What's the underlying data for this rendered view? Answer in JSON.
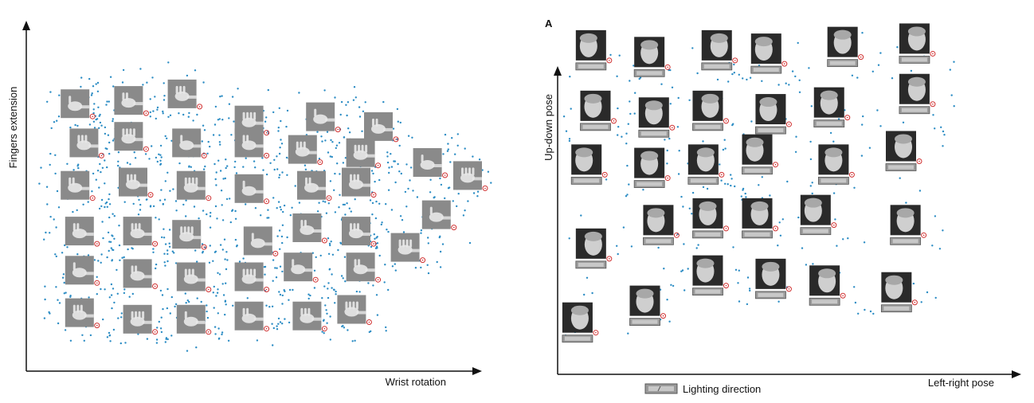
{
  "colors": {
    "point": "#2b8cc4",
    "axis": "#111111",
    "marker": "#d03030",
    "hand_bg": "#8a8a8a",
    "hand_fg": "#e8e8e8",
    "face_bg": "#2a2a2a",
    "face_fg": "#cfcfcf",
    "light_bar": "#9a9a9a"
  },
  "chart_data": [
    {
      "type": "scatter",
      "name": "hand-images-embedding",
      "xlabel": "Wrist rotation",
      "ylabel": "Fingers extension",
      "grid": false,
      "x_range": [
        0,
        10
      ],
      "y_range": [
        0,
        10
      ],
      "thumbnail_icon": "hand-image-icon",
      "thumbnails": [
        {
          "x": 0.7,
          "y": 7.8
        },
        {
          "x": 1.9,
          "y": 7.9
        },
        {
          "x": 3.1,
          "y": 8.1
        },
        {
          "x": 4.6,
          "y": 7.3
        },
        {
          "x": 6.2,
          "y": 7.4
        },
        {
          "x": 7.5,
          "y": 7.1
        },
        {
          "x": 0.9,
          "y": 6.6
        },
        {
          "x": 1.9,
          "y": 6.8
        },
        {
          "x": 3.2,
          "y": 6.6
        },
        {
          "x": 4.6,
          "y": 6.6
        },
        {
          "x": 5.8,
          "y": 6.4
        },
        {
          "x": 7.1,
          "y": 6.3
        },
        {
          "x": 8.6,
          "y": 6.0
        },
        {
          "x": 0.7,
          "y": 5.3
        },
        {
          "x": 2.0,
          "y": 5.4
        },
        {
          "x": 3.3,
          "y": 5.3
        },
        {
          "x": 4.6,
          "y": 5.2
        },
        {
          "x": 6.0,
          "y": 5.3
        },
        {
          "x": 7.0,
          "y": 5.4
        },
        {
          "x": 9.5,
          "y": 5.6
        },
        {
          "x": 8.8,
          "y": 4.4
        },
        {
          "x": 0.8,
          "y": 3.9
        },
        {
          "x": 2.1,
          "y": 3.9
        },
        {
          "x": 3.2,
          "y": 3.8
        },
        {
          "x": 4.8,
          "y": 3.6
        },
        {
          "x": 5.9,
          "y": 4.0
        },
        {
          "x": 7.0,
          "y": 3.9
        },
        {
          "x": 8.1,
          "y": 3.4
        },
        {
          "x": 0.8,
          "y": 2.7
        },
        {
          "x": 2.1,
          "y": 2.6
        },
        {
          "x": 3.3,
          "y": 2.5
        },
        {
          "x": 4.6,
          "y": 2.5
        },
        {
          "x": 5.7,
          "y": 2.8
        },
        {
          "x": 7.1,
          "y": 2.8
        },
        {
          "x": 0.8,
          "y": 1.4
        },
        {
          "x": 2.1,
          "y": 1.2
        },
        {
          "x": 3.3,
          "y": 1.2
        },
        {
          "x": 4.6,
          "y": 1.3
        },
        {
          "x": 5.9,
          "y": 1.3
        },
        {
          "x": 6.9,
          "y": 1.5
        }
      ]
    },
    {
      "type": "scatter",
      "name": "face-images-embedding",
      "panel_label": "A",
      "xlabel": "Left-right pose",
      "ylabel": "Up-down pose",
      "legend": {
        "label": "Lighting direction",
        "icon": "lighting-direction-bar-icon",
        "placement": "bottom-center"
      },
      "grid": false,
      "x_range": [
        0,
        10
      ],
      "y_range": [
        0,
        10
      ],
      "thumbnail_icon": "face-image-icon",
      "thumbnails": [
        {
          "x": 0.6,
          "y": 9.6
        },
        {
          "x": 1.9,
          "y": 9.4
        },
        {
          "x": 3.4,
          "y": 9.6
        },
        {
          "x": 4.5,
          "y": 9.5
        },
        {
          "x": 6.2,
          "y": 9.7
        },
        {
          "x": 7.8,
          "y": 9.8
        },
        {
          "x": 0.7,
          "y": 7.8
        },
        {
          "x": 2.0,
          "y": 7.6
        },
        {
          "x": 3.2,
          "y": 7.8
        },
        {
          "x": 4.6,
          "y": 7.7
        },
        {
          "x": 5.9,
          "y": 7.9
        },
        {
          "x": 7.8,
          "y": 8.3
        },
        {
          "x": 0.5,
          "y": 6.2
        },
        {
          "x": 1.9,
          "y": 6.1
        },
        {
          "x": 3.1,
          "y": 6.2
        },
        {
          "x": 4.3,
          "y": 6.5
        },
        {
          "x": 6.0,
          "y": 6.2
        },
        {
          "x": 7.5,
          "y": 6.6
        },
        {
          "x": 2.1,
          "y": 4.4
        },
        {
          "x": 3.2,
          "y": 4.6
        },
        {
          "x": 4.3,
          "y": 4.6
        },
        {
          "x": 5.6,
          "y": 4.7
        },
        {
          "x": 7.6,
          "y": 4.4
        },
        {
          "x": 0.6,
          "y": 3.7
        },
        {
          "x": 3.2,
          "y": 2.9
        },
        {
          "x": 4.6,
          "y": 2.8
        },
        {
          "x": 5.8,
          "y": 2.6
        },
        {
          "x": 7.4,
          "y": 2.4
        },
        {
          "x": 1.8,
          "y": 2.0
        },
        {
          "x": 0.3,
          "y": 1.5
        }
      ]
    }
  ]
}
